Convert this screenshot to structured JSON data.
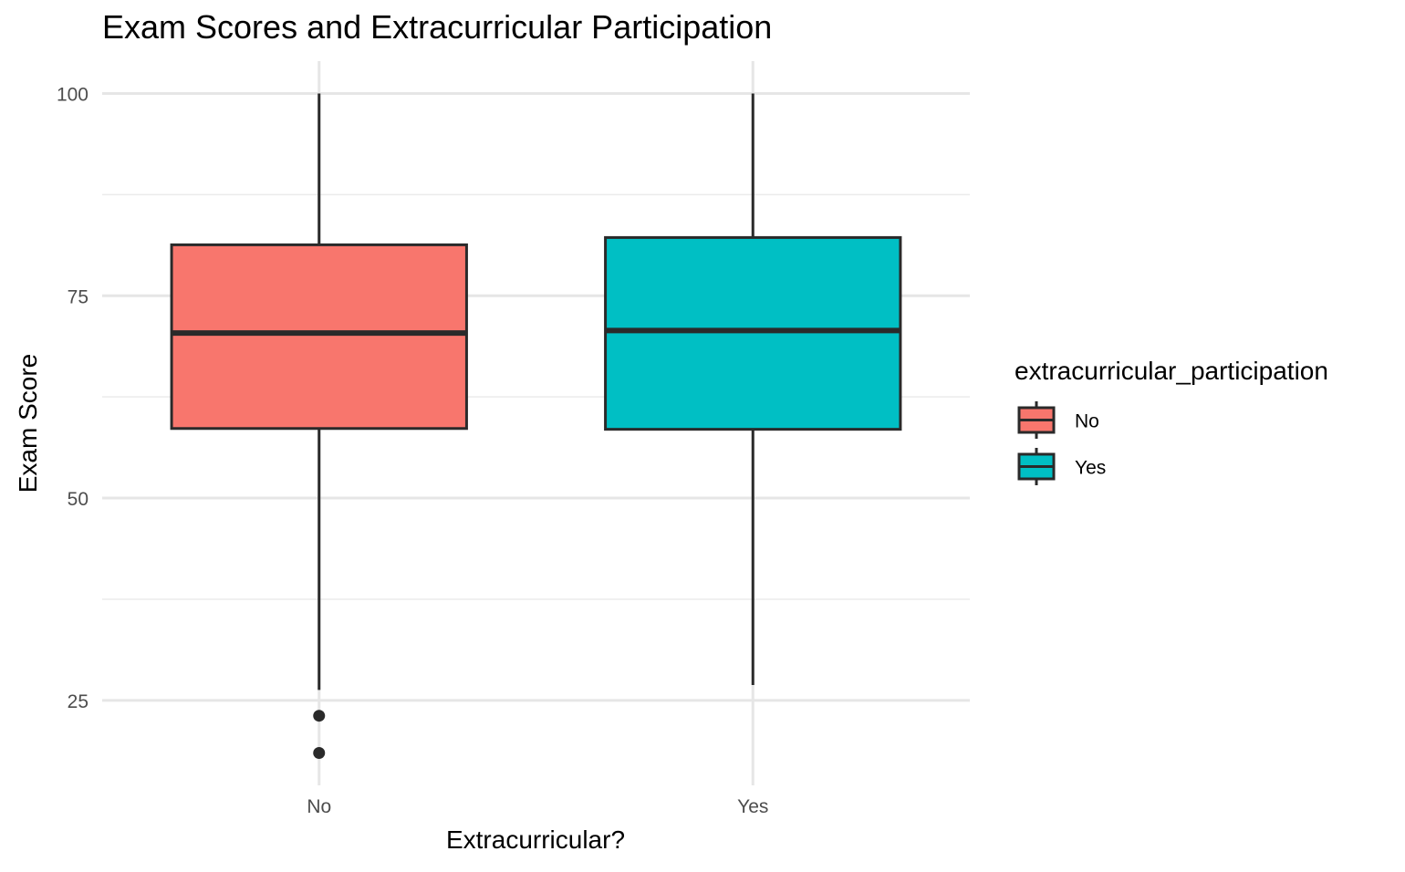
{
  "chart_data": {
    "type": "boxplot",
    "title": "Exam Scores and Extracurricular Participation",
    "xlabel": "Extracurricular?",
    "ylabel": "Exam Score",
    "categories": [
      "No",
      "Yes"
    ],
    "ylim": [
      14.5,
      104
    ],
    "yticks": [
      25,
      50,
      75,
      100
    ],
    "y_minor_gridlines": [
      37.5,
      62.5,
      87.5
    ],
    "grid": true,
    "legend": {
      "title": "extracurricular_participation",
      "position": "right",
      "entries": [
        "No",
        "Yes"
      ]
    },
    "colors": {
      "No": "#F8766D",
      "Yes": "#00BFC4"
    },
    "series": [
      {
        "category": "No",
        "whisker_low": 26.3,
        "q1": 58.6,
        "median": 70.4,
        "q3": 81.3,
        "whisker_high": 100,
        "outliers": [
          23.1,
          18.5
        ]
      },
      {
        "category": "Yes",
        "whisker_low": 26.9,
        "q1": 58.5,
        "median": 70.7,
        "q3": 82.2,
        "whisker_high": 100,
        "outliers": []
      }
    ]
  }
}
